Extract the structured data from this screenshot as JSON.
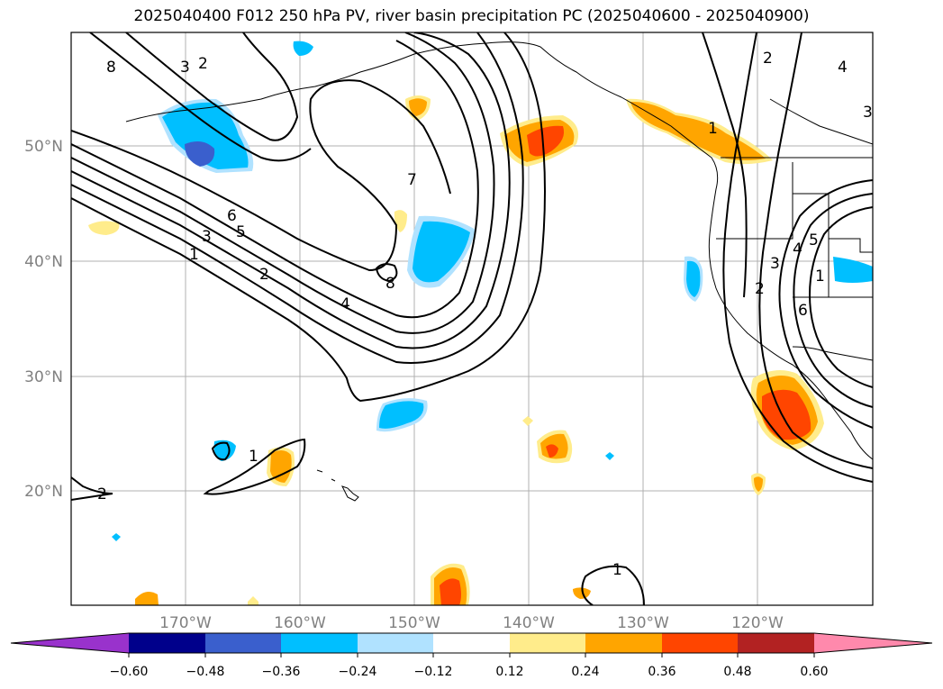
{
  "title": "2025040400 F012 250 hPa PV, river basin precipitation PC (2025040600 - 2025040900)",
  "lat_labels": [
    "50°N",
    "40°N",
    "30°N",
    "20°N"
  ],
  "lon_labels": [
    "170°W",
    "160°W",
    "150°W",
    "140°W",
    "130°W",
    "120°W"
  ],
  "contour_labels": [
    "8",
    "3",
    "2",
    "7",
    "6",
    "5",
    "3",
    "1",
    "2",
    "4",
    "8",
    "2",
    "3",
    "4",
    "5",
    "6",
    "1",
    "2",
    "1",
    "1",
    "1",
    "4",
    "3",
    "2"
  ],
  "colorbar": {
    "ticks": [
      "−0.60",
      "−0.48",
      "−0.36",
      "−0.24",
      "−0.12",
      "0.12",
      "0.24",
      "0.36",
      "0.48",
      "0.60"
    ],
    "colors": [
      "#9932cc",
      "#00008b",
      "#3a5fcd",
      "#00bfff",
      "#b0e2ff",
      "#ffffff",
      "#ffec8b",
      "#ffa500",
      "#ff4500",
      "#b22222",
      "#ff89ac"
    ]
  }
}
